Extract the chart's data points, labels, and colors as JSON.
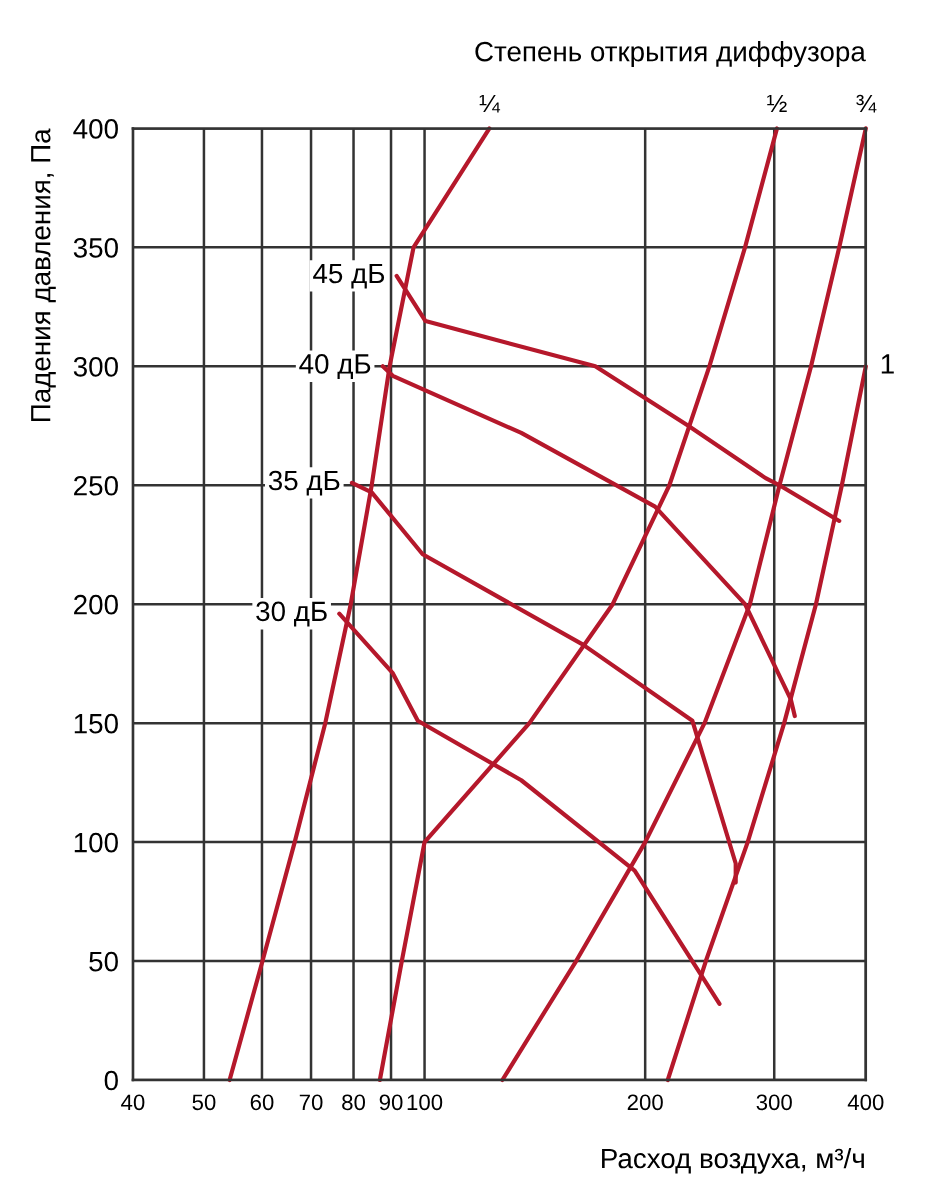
{
  "chart_data": {
    "type": "line",
    "xlabel": "Расход воздуха, м³/ч",
    "ylabel": "Падения давления, Па",
    "annotations": [
      "Степень открытия диффузора"
    ],
    "log": "x",
    "grid": true,
    "marker": "none",
    "line_style": "solid",
    "xlim": [
      40,
      400
    ],
    "xticks": [
      40,
      50,
      60,
      70,
      80,
      90,
      100,
      200,
      300,
      400
    ],
    "ylim": [
      0,
      400
    ],
    "yticks": [
      0,
      50,
      100,
      150,
      200,
      250,
      300,
      350,
      400
    ],
    "series": [
      {
        "name": "¼",
        "color": "#b5182b",
        "x": [
          54.2,
          60.1,
          66.5,
          73.2,
          79.3,
          84.7,
          89.6,
          96.6,
          122.6
        ],
        "values": [
          0,
          50,
          100,
          150,
          200,
          250,
          300,
          350,
          400
        ]
      },
      {
        "name": "½",
        "color": "#b5182b",
        "x": [
          86.9,
          93.1,
          100,
          139,
          180.6,
          215.8,
          244.7,
          273.7,
          302.6
        ],
        "values": [
          0,
          50,
          100,
          150,
          200,
          250,
          300,
          350,
          400
        ]
      },
      {
        "name": "¾",
        "color": "#b5182b",
        "x": [
          127.7,
          161,
          200,
          241,
          277.9,
          305,
          336.8,
          368,
          400
        ],
        "values": [
          0,
          50,
          100,
          150,
          200,
          250,
          300,
          350,
          400
        ]
      },
      {
        "name": "1",
        "color": "#b5182b",
        "x": [
          214.7,
          242,
          276,
          309.5,
          342,
          371,
          400
        ],
        "values": [
          0,
          50,
          100,
          150,
          200,
          250,
          300
        ]
      },
      {
        "name": "45 дБ",
        "color": "#b5182b",
        "x": [
          91.6,
          100.3,
          171,
          229,
          292,
          305,
          368
        ],
        "values": [
          338,
          319,
          300,
          275,
          253,
          250,
          235
        ]
      },
      {
        "name": "40 дБ",
        "color": "#b5182b",
        "x": [
          87.7,
          90.5,
          135.5,
          206.3,
          273.7,
          316,
          320
        ],
        "values": [
          300,
          296,
          272,
          241,
          200,
          160,
          153
        ]
      },
      {
        "name": "35 дБ",
        "color": "#b5182b",
        "x": [
          79.6,
          84.7,
          99.4,
          164.5,
          232,
          265.8,
          265.8
        ],
        "values": [
          251,
          247,
          221,
          183,
          151,
          91,
          83
        ]
      },
      {
        "name": "30 дБ",
        "color": "#b5182b",
        "x": [
          76.5,
          90.5,
          97.9,
          135.5,
          193.5,
          252.6
        ],
        "values": [
          196,
          171,
          151,
          126,
          88,
          32
        ]
      }
    ]
  }
}
